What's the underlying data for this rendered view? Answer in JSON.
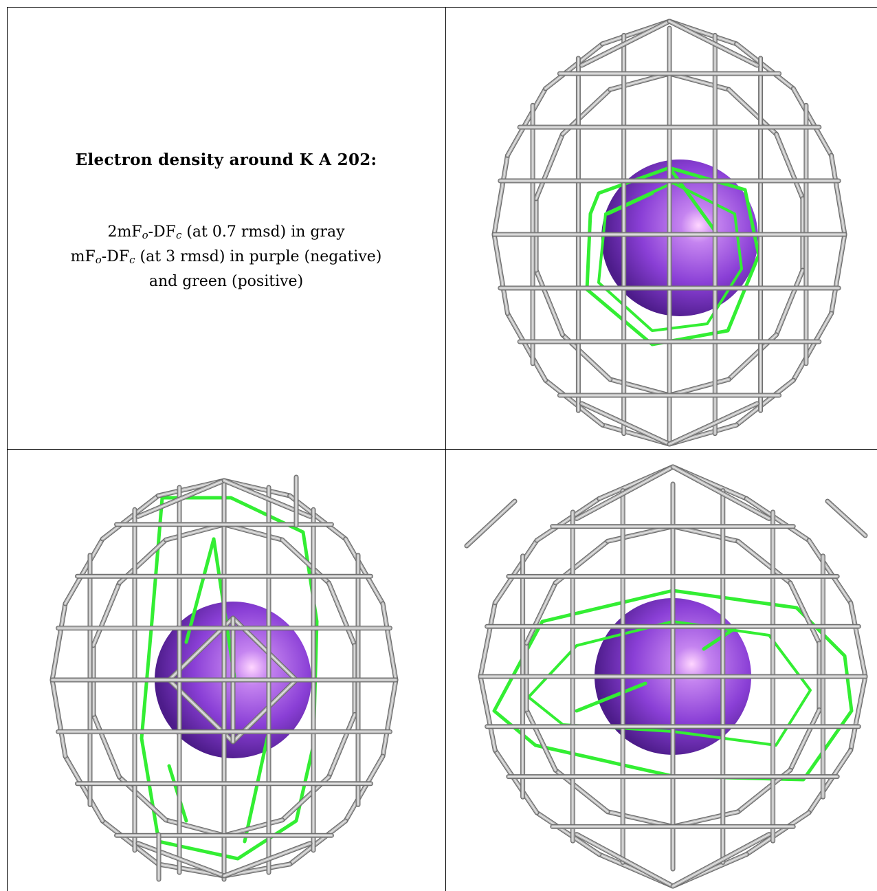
{
  "title": "Electron density around K A 202:",
  "legend": {
    "line1_main": "2mF",
    "line1_sub1": "o",
    "line1_mid": "-DF",
    "line1_sub2": "c",
    "line1_tail": " (at 0.7 rmsd) in gray",
    "line2_main": "mF",
    "line2_sub1": "o",
    "line2_mid": "-DF",
    "line2_sub2": "c",
    "line2_tail": " (at 3 rmsd) in purple (negative)",
    "line3": "and green (positive)"
  },
  "colors": {
    "mesh_gray": "#b8b8b8",
    "mesh_dark": "#6e6e6e",
    "positive_green": "#33ee33",
    "atom_purple": "#8a3fd6",
    "border": "#000000"
  },
  "panels": [
    {
      "view": "front"
    },
    {
      "view": "side"
    },
    {
      "view": "top"
    }
  ]
}
